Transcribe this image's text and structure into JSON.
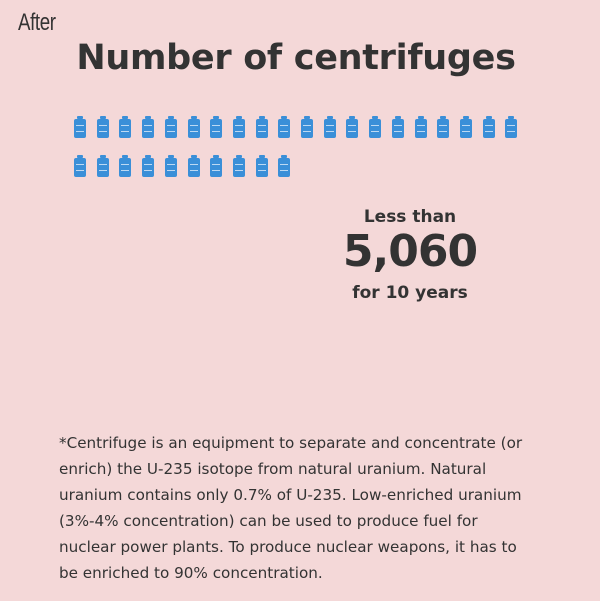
{
  "header": {
    "section_label": "After",
    "title": "Number of centrifuges"
  },
  "icons": {
    "name": "centrifuge-icon",
    "color": "#3a8fd8",
    "rows": [
      20,
      10
    ]
  },
  "stat": {
    "prefix": "Less than",
    "value": "5,060",
    "suffix": "for 10 years"
  },
  "footnote": {
    "lines": [
      "*Centrifuge is an equipment to separate and concentrate (or",
      "enrich) the U-235 isotope from natural uranium. Natural",
      "uranium contains only 0.7% of U-235. Low-enriched uranium",
      "(3%-4% concentration) can be used to produce fuel for",
      "nuclear power plants. To produce nuclear weapons, it has to",
      "be enriched to 90% concentration."
    ]
  }
}
